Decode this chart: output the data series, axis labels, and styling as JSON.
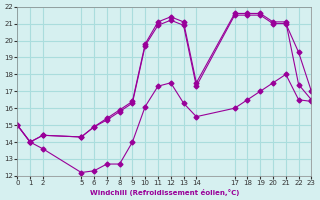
{
  "xlabel": "Windchill (Refroidissement éolien,°C)",
  "ylabel": "",
  "bg_color": "#d6f0f0",
  "grid_color": "#aadddd",
  "line_color": "#990099",
  "ylim": [
    12,
    22
  ],
  "xlim": [
    0,
    23
  ],
  "xticks": [
    0,
    1,
    2,
    5,
    6,
    7,
    8,
    9,
    10,
    11,
    12,
    13,
    14,
    17,
    18,
    19,
    20,
    21,
    22,
    23
  ],
  "yticks": [
    12,
    13,
    14,
    15,
    16,
    17,
    18,
    19,
    20,
    21,
    22
  ],
  "line1": {
    "x": [
      0,
      1,
      2,
      5,
      6,
      7,
      8,
      9,
      10,
      11,
      12,
      13,
      14,
      17,
      18,
      19,
      20,
      21,
      22,
      23
    ],
    "y": [
      15,
      14,
      13.6,
      12.2,
      12.3,
      12.7,
      12.7,
      14.0,
      16.1,
      17.3,
      17.5,
      16.3,
      15.5,
      16.0,
      16.5,
      17.0,
      17.5,
      18.0,
      16.5,
      16.4
    ]
  },
  "line2": {
    "x": [
      0,
      1,
      2,
      5,
      6,
      7,
      8,
      9,
      10,
      11,
      12,
      13,
      14,
      17,
      18,
      19,
      20,
      21,
      22,
      23
    ],
    "y": [
      15,
      14,
      14.4,
      14.3,
      14.9,
      15.3,
      15.8,
      16.3,
      19.7,
      20.9,
      21.2,
      20.9,
      17.3,
      21.5,
      21.5,
      21.5,
      21.0,
      21.0,
      19.3,
      17.0
    ]
  },
  "line3": {
    "x": [
      0,
      1,
      2,
      5,
      6,
      7,
      8,
      9,
      10,
      11,
      12,
      13,
      14,
      17,
      18,
      19,
      20,
      21,
      22,
      23
    ],
    "y": [
      15,
      14,
      14.4,
      14.3,
      14.9,
      15.4,
      15.9,
      16.4,
      19.8,
      21.1,
      21.4,
      21.1,
      17.5,
      21.6,
      21.6,
      21.6,
      21.1,
      21.1,
      17.4,
      16.5
    ]
  }
}
